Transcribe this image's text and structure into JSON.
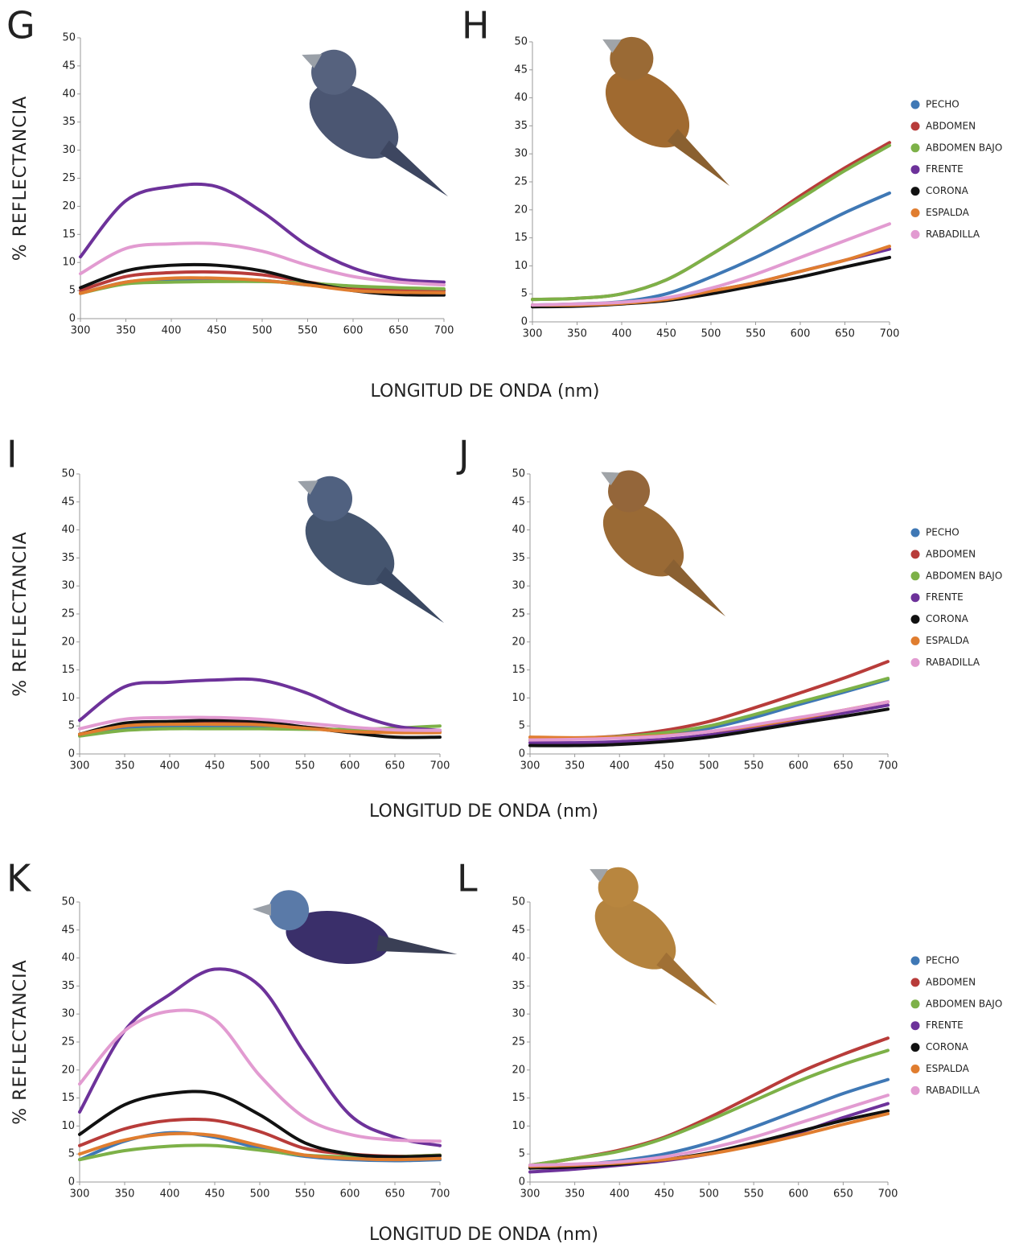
{
  "chart_data": [
    {
      "type": "line",
      "label": "G",
      "ylabel": "% REFLECTANCIA",
      "xlabel": "LONGITUD DE ONDA (nm)",
      "x": [
        300,
        350,
        400,
        450,
        500,
        550,
        600,
        650,
        700
      ],
      "xlim": [
        300,
        700
      ],
      "xticks": [
        300,
        350,
        400,
        450,
        500,
        550,
        600,
        650,
        700
      ],
      "ylim": [
        0,
        50
      ],
      "yticks": [
        0,
        5,
        10,
        15,
        20,
        25,
        30,
        35,
        40,
        45,
        50
      ],
      "series": [
        {
          "color": "#3f78b5",
          "values": [
            4.5,
            6.5,
            7,
            7,
            6.8,
            6,
            5.3,
            5,
            5
          ]
        },
        {
          "color": "#b83c3a",
          "values": [
            5,
            7.5,
            8.2,
            8.3,
            7.8,
            6.5,
            5.5,
            5,
            5
          ]
        },
        {
          "color": "#7db148",
          "values": [
            4.5,
            6.2,
            6.5,
            6.6,
            6.6,
            6.3,
            5.8,
            5.5,
            5.3
          ]
        },
        {
          "color": "#6d329a",
          "values": [
            11,
            21,
            23.5,
            23.5,
            19,
            13,
            9,
            7,
            6.5
          ]
        },
        {
          "color": "#111111",
          "values": [
            5.5,
            8.5,
            9.5,
            9.5,
            8.5,
            6.5,
            5,
            4.3,
            4.2
          ]
        },
        {
          "color": "#e07d2f",
          "values": [
            4.5,
            6.5,
            7.2,
            7.2,
            6.8,
            6,
            5,
            4.7,
            4.6
          ]
        },
        {
          "color": "#e29bd1",
          "values": [
            8,
            12.5,
            13.3,
            13.3,
            12,
            9.5,
            7.5,
            6.5,
            6
          ]
        }
      ]
    },
    {
      "type": "line",
      "label": "H",
      "legend": "right",
      "x": [
        300,
        350,
        400,
        450,
        500,
        550,
        600,
        650,
        700
      ],
      "xlim": [
        300,
        700
      ],
      "xticks": [
        300,
        350,
        400,
        450,
        500,
        550,
        600,
        650,
        700
      ],
      "ylim": [
        0,
        50
      ],
      "yticks": [
        0,
        5,
        10,
        15,
        20,
        25,
        30,
        35,
        40,
        45,
        50
      ],
      "series": [
        {
          "name": "PECHO",
          "color": "#3f78b5",
          "values": [
            3,
            3.2,
            3.6,
            5,
            8,
            11.5,
            15.5,
            19.5,
            23
          ]
        },
        {
          "name": "ABDOMEN",
          "color": "#b83c3a",
          "values": [
            4,
            4.2,
            5,
            7.5,
            12,
            17,
            22.5,
            27.5,
            32
          ]
        },
        {
          "name": "ABDOMEN BAJO",
          "color": "#7db148",
          "values": [
            4,
            4.2,
            5,
            7.5,
            12,
            17,
            22,
            27,
            31.5
          ]
        },
        {
          "name": "FRENTE",
          "color": "#6d329a",
          "values": [
            3,
            3,
            3.4,
            4,
            5.5,
            7,
            9,
            11,
            13
          ]
        },
        {
          "name": "CORONA",
          "color": "#111111",
          "values": [
            2.7,
            2.8,
            3.2,
            3.8,
            5,
            6.5,
            8,
            9.8,
            11.5
          ]
        },
        {
          "name": "ESPALDA",
          "color": "#e07d2f",
          "values": [
            3,
            3,
            3.3,
            4,
            5.5,
            7,
            9,
            11,
            13.5
          ]
        },
        {
          "name": "RABADILLA",
          "color": "#e29bd1",
          "values": [
            3,
            3.2,
            3.5,
            4.3,
            6,
            8.5,
            11.5,
            14.5,
            17.5
          ]
        }
      ]
    },
    {
      "type": "line",
      "label": "I",
      "ylabel": "% REFLECTANCIA",
      "xlabel": "LONGITUD DE ONDA (nm)",
      "x": [
        300,
        350,
        400,
        450,
        500,
        550,
        600,
        650,
        700
      ],
      "xlim": [
        300,
        700
      ],
      "xticks": [
        300,
        350,
        400,
        450,
        500,
        550,
        600,
        650,
        700
      ],
      "ylim": [
        0,
        50
      ],
      "yticks": [
        0,
        5,
        10,
        15,
        20,
        25,
        30,
        35,
        40,
        45,
        50
      ],
      "series": [
        {
          "color": "#3f78b5",
          "values": [
            3.5,
            4.6,
            4.8,
            5,
            4.9,
            4.5,
            4.2,
            4,
            4
          ]
        },
        {
          "color": "#b83c3a",
          "values": [
            3.5,
            5.2,
            5.5,
            5.6,
            5.5,
            4.8,
            4.2,
            4,
            4
          ]
        },
        {
          "color": "#7db148",
          "values": [
            3.2,
            4.2,
            4.5,
            4.5,
            4.5,
            4.4,
            4.4,
            4.6,
            5
          ]
        },
        {
          "color": "#6d329a",
          "values": [
            6,
            12,
            12.8,
            13.2,
            13.2,
            11,
            7.5,
            5,
            4.2
          ]
        },
        {
          "color": "#111111",
          "values": [
            3.5,
            5.5,
            5.8,
            6,
            5.8,
            4.8,
            3.8,
            3,
            3
          ]
        },
        {
          "color": "#e07d2f",
          "values": [
            3.5,
            5,
            5.3,
            5.3,
            5.2,
            4.6,
            4,
            3.8,
            3.8
          ]
        },
        {
          "color": "#e29bd1",
          "values": [
            4.5,
            6.2,
            6.5,
            6.5,
            6.2,
            5.5,
            4.8,
            4.3,
            4.2
          ]
        }
      ]
    },
    {
      "type": "line",
      "label": "J",
      "legend": "right",
      "x": [
        300,
        350,
        400,
        450,
        500,
        550,
        600,
        650,
        700
      ],
      "xlim": [
        300,
        700
      ],
      "xticks": [
        300,
        350,
        400,
        450,
        500,
        550,
        600,
        650,
        700
      ],
      "ylim": [
        0,
        50
      ],
      "yticks": [
        0,
        5,
        10,
        15,
        20,
        25,
        30,
        35,
        40,
        45,
        50
      ],
      "series": [
        {
          "name": "PECHO",
          "color": "#3f78b5",
          "values": [
            2.5,
            2.7,
            3,
            3.5,
            4.6,
            6.5,
            8.8,
            11,
            13.3
          ]
        },
        {
          "name": "ABDOMEN",
          "color": "#b83c3a",
          "values": [
            2.5,
            2.8,
            3.2,
            4.2,
            5.8,
            8.2,
            10.8,
            13.5,
            16.5
          ]
        },
        {
          "name": "ABDOMEN BAJO",
          "color": "#7db148",
          "values": [
            2.5,
            2.8,
            3.1,
            3.8,
            5,
            7,
            9.2,
            11.3,
            13.5
          ]
        },
        {
          "name": "FRENTE",
          "color": "#6d329a",
          "values": [
            2,
            2,
            2.2,
            2.6,
            3.4,
            4.6,
            6,
            7.3,
            8.7
          ]
        },
        {
          "name": "CORONA",
          "color": "#111111",
          "values": [
            1.5,
            1.5,
            1.7,
            2.2,
            3,
            4.2,
            5.5,
            6.7,
            8
          ]
        },
        {
          "name": "ESPALDA",
          "color": "#e07d2f",
          "values": [
            3,
            2.9,
            3,
            3.3,
            4,
            5,
            6.3,
            7.8,
            9.3
          ]
        },
        {
          "name": "RABADILLA",
          "color": "#e29bd1",
          "values": [
            2.5,
            2.6,
            2.8,
            3.2,
            4,
            5.2,
            6.5,
            7.8,
            9.3
          ]
        }
      ]
    },
    {
      "type": "line",
      "label": "K",
      "ylabel": "% REFLECTANCIA",
      "xlabel": "LONGITUD DE ONDA (nm)",
      "x": [
        300,
        350,
        400,
        450,
        500,
        550,
        600,
        650,
        700
      ],
      "xlim": [
        300,
        700
      ],
      "xticks": [
        300,
        350,
        400,
        450,
        500,
        550,
        600,
        650,
        700
      ],
      "ylim": [
        0,
        50
      ],
      "yticks": [
        0,
        5,
        10,
        15,
        20,
        25,
        30,
        35,
        40,
        45,
        50
      ],
      "series": [
        {
          "color": "#3f78b5",
          "values": [
            4,
            7.3,
            8.8,
            8,
            6,
            4.6,
            4,
            3.8,
            4
          ]
        },
        {
          "color": "#b83c3a",
          "values": [
            6.5,
            9.5,
            11,
            11,
            9,
            6,
            5,
            4.6,
            4.8
          ]
        },
        {
          "color": "#7db148",
          "values": [
            4,
            5.6,
            6.4,
            6.5,
            5.7,
            4.8,
            4.5,
            4.5,
            4.8
          ]
        },
        {
          "color": "#6d329a",
          "values": [
            12.5,
            27,
            33.5,
            38,
            35,
            23,
            12,
            8,
            6.5
          ]
        },
        {
          "color": "#111111",
          "values": [
            8.5,
            13.8,
            15.8,
            15.8,
            12,
            7,
            5,
            4.5,
            4.7
          ]
        },
        {
          "color": "#e07d2f",
          "values": [
            5,
            7.5,
            8.6,
            8.3,
            6.5,
            4.8,
            4.2,
            4,
            4.2
          ]
        },
        {
          "color": "#e29bd1",
          "values": [
            17.5,
            27,
            30.5,
            29,
            19,
            11.5,
            8.5,
            7.5,
            7.3
          ]
        }
      ]
    },
    {
      "type": "line",
      "label": "L",
      "legend": "right",
      "x": [
        300,
        350,
        400,
        450,
        500,
        550,
        600,
        650,
        700
      ],
      "xlim": [
        300,
        700
      ],
      "xticks": [
        300,
        350,
        400,
        450,
        500,
        550,
        600,
        650,
        700
      ],
      "ylim": [
        0,
        50
      ],
      "yticks": [
        0,
        5,
        10,
        15,
        20,
        25,
        30,
        35,
        40,
        45,
        50
      ],
      "series": [
        {
          "name": "PECHO",
          "color": "#3f78b5",
          "values": [
            2.5,
            3,
            3.8,
            5,
            7,
            9.8,
            12.8,
            15.8,
            18.3
          ]
        },
        {
          "name": "ABDOMEN",
          "color": "#b83c3a",
          "values": [
            3,
            4.2,
            5.7,
            8,
            11.5,
            15.5,
            19.5,
            22.8,
            25.7
          ]
        },
        {
          "name": "ABDOMEN BAJO",
          "color": "#7db148",
          "values": [
            3,
            4.2,
            5.5,
            7.8,
            11,
            14.5,
            18,
            21,
            23.5
          ]
        },
        {
          "name": "FRENTE",
          "color": "#6d329a",
          "values": [
            1.8,
            2.3,
            3,
            3.8,
            5,
            6.8,
            8.8,
            11.5,
            14
          ]
        },
        {
          "name": "CORONA",
          "color": "#111111",
          "values": [
            2.5,
            2.7,
            3.2,
            4,
            5.2,
            7,
            9,
            11,
            12.7
          ]
        },
        {
          "name": "ESPALDA",
          "color": "#e07d2f",
          "values": [
            2.8,
            3,
            3.4,
            4,
            5,
            6.5,
            8.3,
            10.3,
            12.2
          ]
        },
        {
          "name": "RABADILLA",
          "color": "#e29bd1",
          "values": [
            3,
            3.2,
            3.6,
            4.5,
            6,
            8,
            10.5,
            13,
            15.5
          ]
        }
      ]
    }
  ]
}
